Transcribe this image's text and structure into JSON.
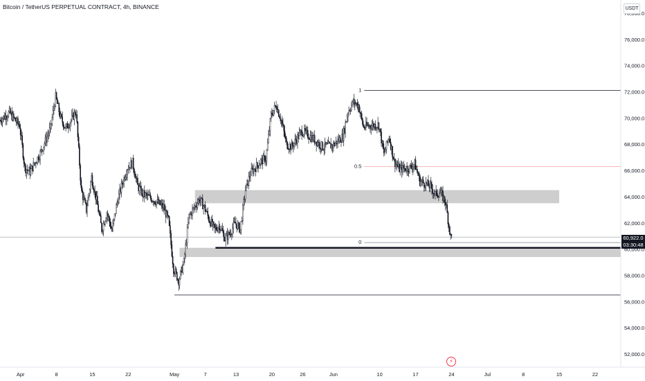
{
  "header": {
    "title": "Bitcoin / TetherUS PERPETUAL CONTRACT, 4h, BINANCE"
  },
  "price_scale": {
    "currency": "USDT"
  },
  "last_price": {
    "price": "60,922.0",
    "countdown": "03:30:48"
  },
  "events": {
    "icon": "lightning-icon"
  },
  "colors": {
    "candles": "#131722",
    "zone": "#bdbdbd",
    "fib_mid": "#f4a0a8",
    "event": "#f23645"
  },
  "chart_data": {
    "type": "candlestick",
    "symbol": "Bitcoin / TetherUS PERPETUAL CONTRACT",
    "interval": "4h",
    "exchange": "BINANCE",
    "ylim": [
      51000,
      79000
    ],
    "yticks": [
      52000,
      54000,
      56000,
      58000,
      60000,
      62000,
      64000,
      66000,
      68000,
      70000,
      72000,
      74000,
      76000,
      78000
    ],
    "ytick_labels": [
      "52,000.0",
      "54,000.0",
      "56,000.0",
      "58,000.0",
      "60,000.0",
      "62,000.0",
      "64,000.0",
      "66,000.0",
      "68,000.0",
      "70,000.0",
      "72,000.0",
      "74,000.0",
      "76,000.0",
      "78,000.0"
    ],
    "xlim": [
      "2024-03-28",
      "2024-07-27"
    ],
    "xticks": [
      {
        "date": "2024-04-01",
        "label": "Apr"
      },
      {
        "date": "2024-04-08",
        "label": "8"
      },
      {
        "date": "2024-04-15",
        "label": "15"
      },
      {
        "date": "2024-04-22",
        "label": "22"
      },
      {
        "date": "2024-05-01",
        "label": "May"
      },
      {
        "date": "2024-05-07",
        "label": "7"
      },
      {
        "date": "2024-05-13",
        "label": "13"
      },
      {
        "date": "2024-05-20",
        "label": "20"
      },
      {
        "date": "2024-05-26",
        "label": "26"
      },
      {
        "date": "2024-06-01",
        "label": "Jun"
      },
      {
        "date": "2024-06-10",
        "label": "10"
      },
      {
        "date": "2024-06-17",
        "label": "17"
      },
      {
        "date": "2024-06-24",
        "label": "24"
      },
      {
        "date": "2024-07-01",
        "label": "Jul"
      },
      {
        "date": "2024-07-08",
        "label": "8"
      },
      {
        "date": "2024-07-15",
        "label": "15"
      },
      {
        "date": "2024-07-22",
        "label": "22"
      }
    ],
    "price_path": [
      [
        "2024-03-28",
        69800
      ],
      [
        "2024-03-30",
        70400
      ],
      [
        "2024-04-01",
        69400
      ],
      [
        "2024-04-02",
        66200
      ],
      [
        "2024-04-03",
        65900
      ],
      [
        "2024-04-05",
        67300
      ],
      [
        "2024-04-07",
        69200
      ],
      [
        "2024-04-08",
        71600
      ],
      [
        "2024-04-09",
        70000
      ],
      [
        "2024-04-10",
        69200
      ],
      [
        "2024-04-12",
        70500
      ],
      [
        "2024-04-13",
        64500
      ],
      [
        "2024-04-14",
        63000
      ],
      [
        "2024-04-15",
        65500
      ],
      [
        "2024-04-16",
        63700
      ],
      [
        "2024-04-17",
        61500
      ],
      [
        "2024-04-18",
        62800
      ],
      [
        "2024-04-19",
        61400
      ],
      [
        "2024-04-20",
        63600
      ],
      [
        "2024-04-21",
        65000
      ],
      [
        "2024-04-22",
        66200
      ],
      [
        "2024-04-23",
        66600
      ],
      [
        "2024-04-24",
        64800
      ],
      [
        "2024-04-25",
        64200
      ],
      [
        "2024-04-27",
        63800
      ],
      [
        "2024-04-29",
        63200
      ],
      [
        "2024-04-30",
        62200
      ],
      [
        "2024-05-01",
        58500
      ],
      [
        "2024-05-02",
        57600
      ],
      [
        "2024-05-03",
        59000
      ],
      [
        "2024-05-04",
        62500
      ],
      [
        "2024-05-06",
        63800
      ],
      [
        "2024-05-07",
        63200
      ],
      [
        "2024-05-08",
        62200
      ],
      [
        "2024-05-09",
        61500
      ],
      [
        "2024-05-10",
        61800
      ],
      [
        "2024-05-11",
        60800
      ],
      [
        "2024-05-12",
        61200
      ],
      [
        "2024-05-13",
        62000
      ],
      [
        "2024-05-14",
        61500
      ],
      [
        "2024-05-15",
        64500
      ],
      [
        "2024-05-16",
        65800
      ],
      [
        "2024-05-18",
        66700
      ],
      [
        "2024-05-19",
        66900
      ],
      [
        "2024-05-20",
        70200
      ],
      [
        "2024-05-21",
        71000
      ],
      [
        "2024-05-22",
        69800
      ],
      [
        "2024-05-23",
        68000
      ],
      [
        "2024-05-24",
        67800
      ],
      [
        "2024-05-26",
        69000
      ],
      [
        "2024-05-28",
        68500
      ],
      [
        "2024-05-30",
        67800
      ],
      [
        "2024-06-01",
        67900
      ],
      [
        "2024-06-03",
        68600
      ],
      [
        "2024-06-04",
        70500
      ],
      [
        "2024-06-05",
        71200
      ],
      [
        "2024-06-06",
        71000
      ],
      [
        "2024-06-07",
        69300
      ],
      [
        "2024-06-08",
        69400
      ],
      [
        "2024-06-10",
        69500
      ],
      [
        "2024-06-11",
        67200
      ],
      [
        "2024-06-12",
        68600
      ],
      [
        "2024-06-13",
        66700
      ],
      [
        "2024-06-14",
        66100
      ],
      [
        "2024-06-16",
        66200
      ],
      [
        "2024-06-17",
        66500
      ],
      [
        "2024-06-18",
        65200
      ],
      [
        "2024-06-19",
        65000
      ],
      [
        "2024-06-20",
        64800
      ],
      [
        "2024-06-21",
        64200
      ],
      [
        "2024-06-22",
        64300
      ],
      [
        "2024-06-23",
        63600
      ],
      [
        "2024-06-24",
        60922
      ]
    ],
    "lines": [
      {
        "kind": "fib-1",
        "label": "1",
        "price": 72100,
        "from": "2024-06-07",
        "to": "2024-07-27"
      },
      {
        "kind": "fib-0.5",
        "label": "0.5",
        "price": 66300,
        "from": "2024-06-07",
        "to": "2024-07-27"
      },
      {
        "kind": "fib-0",
        "label": "0",
        "price": 60500,
        "from": "2024-06-07",
        "to": "2024-07-27"
      },
      {
        "kind": "support",
        "label": "",
        "price": 60100,
        "from": "2024-05-09",
        "to": "2024-07-27"
      },
      {
        "kind": "low",
        "label": "",
        "price": 56500,
        "from": "2024-05-01",
        "to": "2024-07-27"
      },
      {
        "kind": "last-price",
        "label": "",
        "price": 60922,
        "from": "2024-03-28",
        "to": "2024-07-27"
      }
    ],
    "zones": [
      {
        "from": "2024-05-05",
        "to": "2024-07-15",
        "high": 64500,
        "low": 63500
      },
      {
        "from": "2024-05-02",
        "to": "2024-07-27",
        "high": 60100,
        "low": 59400
      }
    ]
  }
}
